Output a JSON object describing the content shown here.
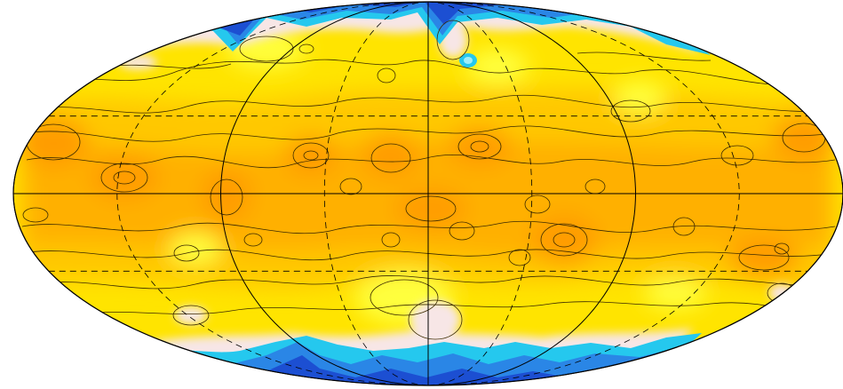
{
  "map": {
    "projection": "mollweide",
    "colors": {
      "background": "#ffffff",
      "deep_blue": "#1c4fd2",
      "blue": "#2a86e6",
      "cyan": "#25c8ee",
      "light_cyan": "#9feefa",
      "pale_pink": "#f7e6e6",
      "light_yellow": "#ffff3c",
      "yellow": "#ffe400",
      "gold": "#ffc800",
      "orange": "#ffb000",
      "dark_orange": "#ff9c00",
      "contour_line": "#3a2a00",
      "grid_line": "#000000"
    },
    "graticule": {
      "solid_meridians_deg": [
        -180,
        -90,
        0,
        90,
        180
      ],
      "dashed_meridians_deg": [
        -135,
        -45,
        45,
        135
      ],
      "solid_parallels_deg": [
        0
      ],
      "dashed_parallels_deg": [
        -30,
        30
      ]
    }
  }
}
